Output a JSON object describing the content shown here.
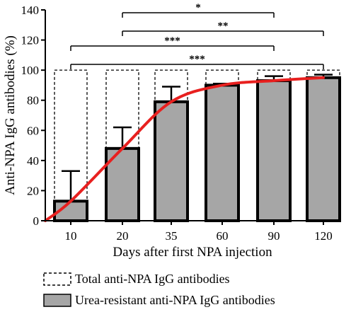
{
  "chart_data": {
    "type": "bar",
    "xlabel": "Days after first NPA injection",
    "ylabel": "Anti-NPA IgG antibodies (%)",
    "ylim": [
      0,
      140
    ],
    "yticks": [
      "0",
      "20",
      "40",
      "60",
      "80",
      "100",
      "120",
      "140"
    ],
    "categories": [
      "10",
      "20",
      "35",
      "60",
      "90",
      "120"
    ],
    "series": [
      {
        "name": "Total anti-NPA IgG antibodies",
        "style": "dashed-outline",
        "values": [
          100,
          100,
          100,
          100,
          100,
          100
        ]
      },
      {
        "name": "Urea-resistant anti-NPA IgG antibodies",
        "style": "gray-fill",
        "color": "#a6a6a6",
        "values": [
          13,
          48,
          79,
          90,
          93,
          95
        ],
        "error": [
          20,
          14,
          10,
          1,
          3,
          2
        ]
      }
    ],
    "trend_line": {
      "color": "#e8201f",
      "points": [
        [
          0,
          0
        ],
        [
          10,
          13
        ],
        [
          20,
          48
        ],
        [
          35,
          79
        ],
        [
          60,
          90
        ],
        [
          90,
          93
        ],
        [
          120,
          95
        ]
      ]
    },
    "significance": [
      {
        "from": "20",
        "to": "90",
        "label": "*"
      },
      {
        "from": "20",
        "to": "120",
        "label": "**"
      },
      {
        "from": "10",
        "to": "90",
        "label": "***"
      },
      {
        "from": "10",
        "to": "120",
        "label": "***"
      }
    ],
    "legend": {
      "position": "bottom",
      "entries": [
        "Total anti-NPA IgG antibodies",
        "Urea-resistant anti-NPA IgG antibodies"
      ]
    }
  }
}
